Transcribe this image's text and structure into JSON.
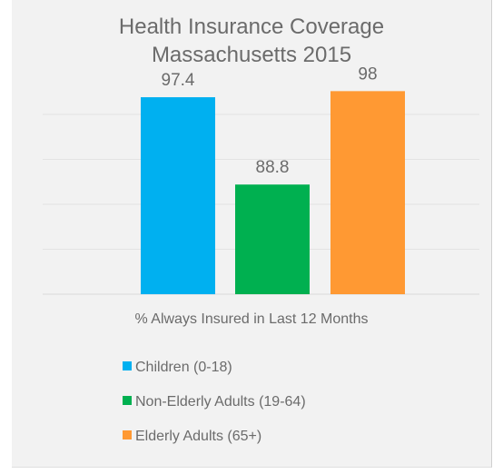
{
  "chart_data": {
    "type": "bar",
    "title_lines": [
      "Health Insurance Coverage",
      "Massachusetts 2015"
    ],
    "xlabel": "% Always Insured in Last 12 Months",
    "ylim": [
      78,
      100
    ],
    "grid": true,
    "legend_position": "bottom",
    "series": [
      {
        "name": "Children (0-18)",
        "value": 97.4,
        "label": "97.4",
        "color": "#00b0f0"
      },
      {
        "name": "Non-Elderly Adults (19-64)",
        "value": 88.8,
        "label": "88.8",
        "color": "#00b050"
      },
      {
        "name": "Elderly Adults (65+)",
        "value": 98,
        "label": "98",
        "color": "#ff9933"
      }
    ]
  }
}
